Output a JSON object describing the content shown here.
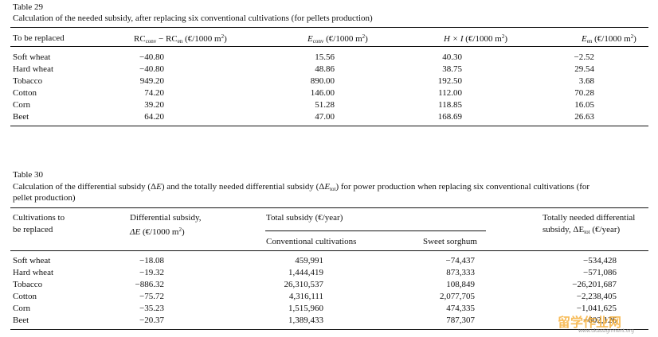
{
  "table29": {
    "label": "Table 29",
    "caption": "Calculation of the needed subsidy, after replacing six conventional cultivations (for pellets production)",
    "headers": {
      "col1": "To be replaced",
      "col2_a": "RC",
      "col2_sub1": "conv",
      "col2_b": " − RC",
      "col2_sub2": "en",
      "col2_unit": " (€/1000 m",
      "col2_sup": "2",
      "col2_close": ")",
      "col3_a": "E",
      "col3_sub": "conv",
      "col3_unit": " (€/1000 m",
      "col3_sup": "2",
      "col3_close": ")",
      "col4_a": "H × I",
      "col4_unit": " (€/1000 m",
      "col4_sup": "2",
      "col4_close": ")",
      "col5_a": "E",
      "col5_sub": "en",
      "col5_unit": " (€/1000 m",
      "col5_sup": "2",
      "col5_close": ")"
    },
    "rows": [
      [
        "Soft wheat",
        "−40.80",
        "15.56",
        "40.30",
        "−2.52"
      ],
      [
        "Hard wheat",
        "−40.80",
        "48.86",
        "38.75",
        "29.54"
      ],
      [
        "Tobacco",
        "949.20",
        "890.00",
        "192.50",
        "3.68"
      ],
      [
        "Cotton",
        "74.20",
        "146.00",
        "112.00",
        "70.28"
      ],
      [
        "Corn",
        "39.20",
        "51.28",
        "118.85",
        "16.05"
      ],
      [
        "Beet",
        "64.20",
        "47.00",
        "168.69",
        "26.63"
      ]
    ]
  },
  "table30": {
    "label": "Table 30",
    "caption_a": "Calculation of the differential subsidy (Δ",
    "caption_E1": "E",
    "caption_b": ") and the totally needed differential subsidy (Δ",
    "caption_E2": "E",
    "caption_sub": "tot",
    "caption_c": ") for power production when replacing six conventional cultivations (for",
    "caption_line2": "pellet production)",
    "headers": {
      "col1_l1": "Cultivations to",
      "col1_l2": "be replaced",
      "col2_l1": "Differential subsidy,",
      "col2_l2_a": "ΔE",
      "col2_l2_unit": " (€/1000 m",
      "col2_l2_sup": "2",
      "col2_l2_close": ")",
      "total_group": "Total subsidy (€/year)",
      "sub_conv": "Conventional cultivations",
      "sub_sweet": "Sweet sorghum",
      "col5_l1": "Totally needed differential",
      "col5_l2_a": "subsidy, ΔE",
      "col5_l2_sub": "tot",
      "col5_l2_b": " (€/year)"
    },
    "rows": [
      [
        "Soft wheat",
        "−18.08",
        "459,991",
        "−74,437",
        "−534,428"
      ],
      [
        "Hard wheat",
        "−19.32",
        "1,444,419",
        "873,333",
        "−571,086"
      ],
      [
        "Tobacco",
        "−886.32",
        "26,310,537",
        "108,849",
        "−26,201,687"
      ],
      [
        "Cotton",
        "−75.72",
        "4,316,111",
        "2,077,705",
        "−2,238,405"
      ],
      [
        "Corn",
        "−35.23",
        "1,515,960",
        "474,335",
        "−1,041,625"
      ],
      [
        "Beet",
        "−20.37",
        "1,389,433",
        "787,307",
        "−602,126"
      ]
    ]
  },
  "watermark": {
    "text_cn": "留学作业网",
    "text_en": "www.ukassignment.org",
    "color": "#f5a623"
  }
}
